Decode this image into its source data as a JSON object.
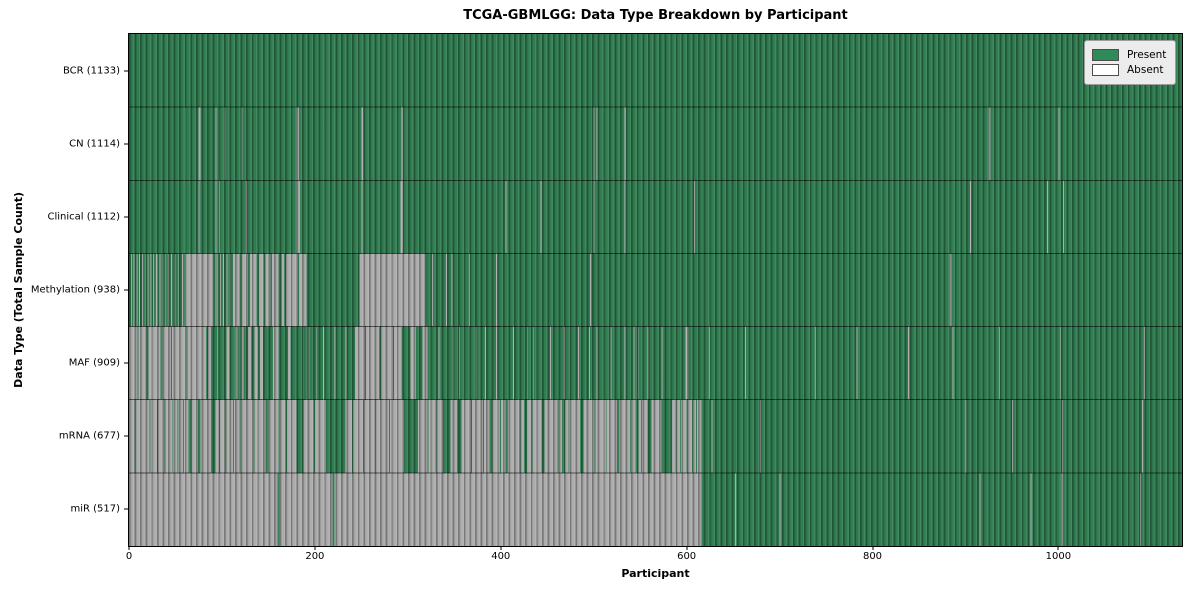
{
  "chart_data": {
    "type": "heatmap",
    "title": "TCGA-GBMLGG: Data Type Breakdown by Participant",
    "xlabel": "Participant",
    "ylabel": "Data Type (Total Sample Count)",
    "x_ticks": [
      0,
      200,
      400,
      600,
      800,
      1000
    ],
    "total_participants": 1133,
    "legend": [
      {
        "label": "Present",
        "color": "#2e8b57"
      },
      {
        "label": "Absent",
        "color": "#ffffff"
      }
    ],
    "colors": {
      "present": "#2d7a4e",
      "absent": "#ababab",
      "row_divider": "rgba(0,0,0,0.6)",
      "border": "#000000",
      "legend_bg": "#ececec"
    },
    "rows": [
      {
        "label": "BCR (1133)",
        "count": 1133,
        "absent_ranges": [],
        "present_ranges": []
      },
      {
        "label": "CN (1114)",
        "count": 1114,
        "absent_ranges": [
          [
            60,
            60
          ],
          [
            75,
            76
          ],
          [
            93,
            93
          ],
          [
            103,
            103
          ],
          [
            121,
            121
          ],
          [
            180,
            182
          ],
          [
            250,
            251
          ],
          [
            293,
            294
          ],
          [
            500,
            500
          ],
          [
            503,
            503
          ],
          [
            533,
            534
          ],
          [
            925,
            926
          ],
          [
            1000,
            1000
          ]
        ],
        "present_ranges": []
      },
      {
        "label": "Clinical (1112)",
        "count": 1112,
        "absent_ranges": [
          [
            60,
            60
          ],
          [
            75,
            75
          ],
          [
            93,
            93
          ],
          [
            97,
            97
          ],
          [
            126,
            126
          ],
          [
            180,
            183
          ],
          [
            250,
            250
          ],
          [
            292,
            294
          ],
          [
            405,
            405
          ],
          [
            443,
            443
          ],
          [
            500,
            500
          ],
          [
            533,
            533
          ],
          [
            608,
            608
          ],
          [
            905,
            905
          ],
          [
            988,
            988
          ],
          [
            1005,
            1005
          ]
        ],
        "present_ranges": []
      },
      {
        "label": "Methylation (938)",
        "count": 938,
        "absent_ranges": [
          [
            2,
            2
          ],
          [
            5,
            5
          ],
          [
            8,
            8
          ],
          [
            11,
            11
          ],
          [
            14,
            14
          ],
          [
            17,
            17
          ],
          [
            20,
            20
          ],
          [
            23,
            23
          ],
          [
            26,
            26
          ],
          [
            29,
            30
          ],
          [
            33,
            33
          ],
          [
            36,
            36
          ],
          [
            39,
            39
          ],
          [
            42,
            42
          ],
          [
            45,
            45
          ],
          [
            49,
            49
          ],
          [
            53,
            53
          ],
          [
            57,
            57
          ],
          [
            60,
            90
          ],
          [
            93,
            93
          ],
          [
            95,
            95
          ],
          [
            98,
            98
          ],
          [
            101,
            101
          ],
          [
            105,
            105
          ],
          [
            108,
            108
          ],
          [
            112,
            118
          ],
          [
            121,
            127
          ],
          [
            130,
            136
          ],
          [
            140,
            144
          ],
          [
            147,
            151
          ],
          [
            154,
            160
          ],
          [
            164,
            166
          ],
          [
            169,
            181
          ],
          [
            183,
            190
          ],
          [
            248,
            318
          ],
          [
            326,
            326
          ],
          [
            341,
            341
          ],
          [
            347,
            347
          ],
          [
            366,
            366
          ],
          [
            395,
            395
          ],
          [
            496,
            496
          ],
          [
            883,
            884
          ]
        ],
        "present_ranges": []
      },
      {
        "label": "MAF (909)",
        "count": 909,
        "absent_ranges": [
          [
            0,
            8
          ],
          [
            10,
            18
          ],
          [
            21,
            33
          ],
          [
            36,
            44
          ],
          [
            46,
            61
          ],
          [
            63,
            82
          ],
          [
            85,
            87
          ],
          [
            95,
            95
          ],
          [
            105,
            107
          ],
          [
            114,
            116
          ],
          [
            121,
            122
          ],
          [
            128,
            130
          ],
          [
            135,
            138
          ],
          [
            141,
            143
          ],
          [
            155,
            160
          ],
          [
            171,
            173
          ],
          [
            187,
            187
          ],
          [
            193,
            193
          ],
          [
            201,
            201
          ],
          [
            209,
            209
          ],
          [
            221,
            221
          ],
          [
            233,
            233
          ],
          [
            243,
            253
          ],
          [
            255,
            268
          ],
          [
            271,
            283
          ],
          [
            285,
            292
          ],
          [
            303,
            308
          ],
          [
            316,
            320
          ],
          [
            333,
            333
          ],
          [
            348,
            348
          ],
          [
            355,
            355
          ],
          [
            373,
            373
          ],
          [
            383,
            383
          ],
          [
            395,
            395
          ],
          [
            413,
            413
          ],
          [
            428,
            428
          ],
          [
            435,
            435
          ],
          [
            453,
            453
          ],
          [
            468,
            468
          ],
          [
            483,
            483
          ],
          [
            495,
            495
          ],
          [
            503,
            503
          ],
          [
            518,
            518
          ],
          [
            533,
            533
          ],
          [
            543,
            543
          ],
          [
            548,
            548
          ],
          [
            558,
            558
          ],
          [
            573,
            573
          ],
          [
            599,
            601
          ],
          [
            624,
            624
          ],
          [
            663,
            663
          ],
          [
            738,
            738
          ],
          [
            783,
            783
          ],
          [
            838,
            838
          ],
          [
            886,
            886
          ],
          [
            936,
            936
          ],
          [
            1002,
            1002
          ],
          [
            1092,
            1092
          ]
        ],
        "present_ranges": []
      },
      {
        "label": "mRNA (677)",
        "count": 677,
        "absent_ranges": [
          [
            0,
            615
          ],
          [
            627,
            627
          ],
          [
            679,
            679
          ],
          [
            900,
            900
          ],
          [
            950,
            950
          ],
          [
            1004,
            1004
          ],
          [
            1090,
            1090
          ]
        ],
        "present_ranges": [
          [
            6,
            6
          ],
          [
            22,
            22
          ],
          [
            30,
            30
          ],
          [
            38,
            38
          ],
          [
            46,
            46
          ],
          [
            52,
            52
          ],
          [
            58,
            58
          ],
          [
            64,
            66
          ],
          [
            74,
            76
          ],
          [
            88,
            92
          ],
          [
            97,
            97
          ],
          [
            104,
            104
          ],
          [
            112,
            112
          ],
          [
            119,
            119
          ],
          [
            134,
            134
          ],
          [
            147,
            149
          ],
          [
            161,
            161
          ],
          [
            169,
            169
          ],
          [
            180,
            187
          ],
          [
            199,
            199
          ],
          [
            212,
            232
          ],
          [
            240,
            240
          ],
          [
            252,
            252
          ],
          [
            265,
            265
          ],
          [
            280,
            280
          ],
          [
            296,
            310
          ],
          [
            321,
            321
          ],
          [
            330,
            330
          ],
          [
            338,
            345
          ],
          [
            353,
            357
          ],
          [
            368,
            368
          ],
          [
            381,
            381
          ],
          [
            388,
            390
          ],
          [
            399,
            399
          ],
          [
            405,
            407
          ],
          [
            420,
            420
          ],
          [
            425,
            427
          ],
          [
            433,
            433
          ],
          [
            444,
            446
          ],
          [
            461,
            461
          ],
          [
            466,
            468
          ],
          [
            473,
            473
          ],
          [
            485,
            488
          ],
          [
            501,
            501
          ],
          [
            513,
            513
          ],
          [
            525,
            527
          ],
          [
            539,
            539
          ],
          [
            545,
            547
          ],
          [
            551,
            551
          ],
          [
            558,
            561
          ],
          [
            573,
            583
          ],
          [
            588,
            588
          ],
          [
            593,
            593
          ],
          [
            600,
            600
          ],
          [
            606,
            606
          ],
          [
            610,
            610
          ]
        ]
      },
      {
        "label": "miR (517)",
        "count": 517,
        "absent_ranges": [
          [
            0,
            615
          ],
          [
            652,
            652
          ],
          [
            700,
            700
          ],
          [
            915,
            915
          ],
          [
            970,
            970
          ],
          [
            1003,
            1004
          ],
          [
            1088,
            1088
          ]
        ],
        "present_ranges": [
          [
            160,
            161
          ],
          [
            219,
            220
          ]
        ]
      }
    ]
  }
}
